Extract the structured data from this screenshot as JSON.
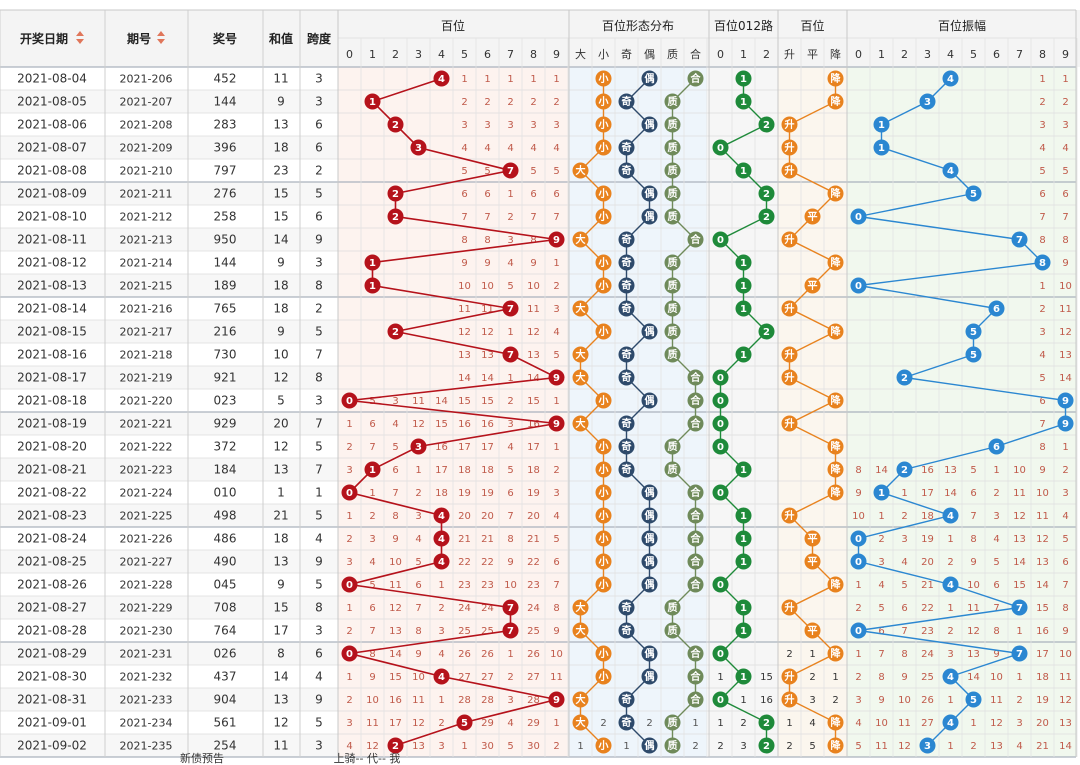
{
  "headers": {
    "date": "开奖日期",
    "issue": "期号",
    "number": "奖号",
    "sum": "和值",
    "span": "跨度",
    "hundreds": "百位",
    "form": "百位形态分布",
    "route": "百位012路",
    "trend": "百位",
    "amplitude": "百位振幅",
    "digits": [
      "0",
      "1",
      "2",
      "3",
      "4",
      "5",
      "6",
      "7",
      "8",
      "9"
    ],
    "form_cols": [
      "大",
      "小",
      "奇",
      "偶",
      "质",
      "合"
    ],
    "route_cols": [
      "0",
      "1",
      "2"
    ],
    "trend_cols": [
      "升",
      "平",
      "降"
    ]
  },
  "footer": {
    "left": "新债预告",
    "right": "上骑-- 代-- 我"
  },
  "colors": {
    "red": "#b5121b",
    "orange": "#e8821e",
    "navy": "#2e4a6b",
    "olive": "#6f8a5a",
    "green": "#1e8a3a",
    "blue": "#2b87d1"
  },
  "chart_data": {
    "type": "table",
    "rows": [
      {
        "date": "2021-08-04",
        "issue": "2021-206",
        "number": "452",
        "sum": "11",
        "span": "3"
      },
      {
        "date": "2021-08-05",
        "issue": "2021-207",
        "number": "144",
        "sum": "9",
        "span": "3"
      },
      {
        "date": "2021-08-06",
        "issue": "2021-208",
        "number": "283",
        "sum": "13",
        "span": "6"
      },
      {
        "date": "2021-08-07",
        "issue": "2021-209",
        "number": "396",
        "sum": "18",
        "span": "6"
      },
      {
        "date": "2021-08-08",
        "issue": "2021-210",
        "number": "797",
        "sum": "23",
        "span": "2"
      },
      {
        "date": "2021-08-09",
        "issue": "2021-211",
        "number": "276",
        "sum": "15",
        "span": "5"
      },
      {
        "date": "2021-08-10",
        "issue": "2021-212",
        "number": "258",
        "sum": "15",
        "span": "6"
      },
      {
        "date": "2021-08-11",
        "issue": "2021-213",
        "number": "950",
        "sum": "14",
        "span": "9"
      },
      {
        "date": "2021-08-12",
        "issue": "2021-214",
        "number": "144",
        "sum": "9",
        "span": "3"
      },
      {
        "date": "2021-08-13",
        "issue": "2021-215",
        "number": "189",
        "sum": "18",
        "span": "8"
      },
      {
        "date": "2021-08-14",
        "issue": "2021-216",
        "number": "765",
        "sum": "18",
        "span": "2"
      },
      {
        "date": "2021-08-15",
        "issue": "2021-217",
        "number": "216",
        "sum": "9",
        "span": "5"
      },
      {
        "date": "2021-08-16",
        "issue": "2021-218",
        "number": "730",
        "sum": "10",
        "span": "7"
      },
      {
        "date": "2021-08-17",
        "issue": "2021-219",
        "number": "921",
        "sum": "12",
        "span": "8"
      },
      {
        "date": "2021-08-18",
        "issue": "2021-220",
        "number": "023",
        "sum": "5",
        "span": "3"
      },
      {
        "date": "2021-08-19",
        "issue": "2021-221",
        "number": "929",
        "sum": "20",
        "span": "7"
      },
      {
        "date": "2021-08-20",
        "issue": "2021-222",
        "number": "372",
        "sum": "12",
        "span": "5"
      },
      {
        "date": "2021-08-21",
        "issue": "2021-223",
        "number": "184",
        "sum": "13",
        "span": "7"
      },
      {
        "date": "2021-08-22",
        "issue": "2021-224",
        "number": "010",
        "sum": "1",
        "span": "1"
      },
      {
        "date": "2021-08-23",
        "issue": "2021-225",
        "number": "498",
        "sum": "21",
        "span": "5"
      },
      {
        "date": "2021-08-24",
        "issue": "2021-226",
        "number": "486",
        "sum": "18",
        "span": "4"
      },
      {
        "date": "2021-08-25",
        "issue": "2021-227",
        "number": "490",
        "sum": "13",
        "span": "9"
      },
      {
        "date": "2021-08-26",
        "issue": "2021-228",
        "number": "045",
        "sum": "9",
        "span": "5"
      },
      {
        "date": "2021-08-27",
        "issue": "2021-229",
        "number": "708",
        "sum": "15",
        "span": "8"
      },
      {
        "date": "2021-08-28",
        "issue": "2021-230",
        "number": "764",
        "sum": "17",
        "span": "3"
      },
      {
        "date": "2021-08-29",
        "issue": "2021-231",
        "number": "026",
        "sum": "8",
        "span": "6"
      },
      {
        "date": "2021-08-30",
        "issue": "2021-232",
        "number": "437",
        "sum": "14",
        "span": "4"
      },
      {
        "date": "2021-08-31",
        "issue": "2021-233",
        "number": "904",
        "sum": "13",
        "span": "9"
      },
      {
        "date": "2021-09-01",
        "issue": "2021-234",
        "number": "561",
        "sum": "12",
        "span": "5"
      },
      {
        "date": "2021-09-02",
        "issue": "2021-235",
        "number": "254",
        "sum": "11",
        "span": "3"
      }
    ]
  }
}
